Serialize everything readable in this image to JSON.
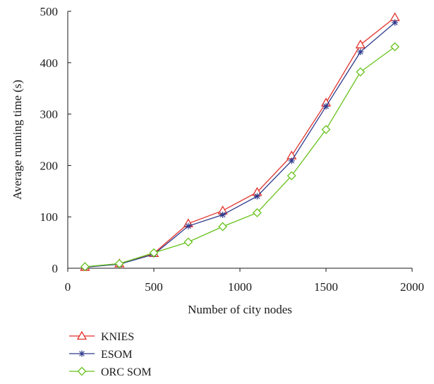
{
  "chart_data": {
    "type": "line",
    "title": "",
    "xlabel": "Number of city nodes",
    "ylabel": "Average running time (s)",
    "xlim": [
      0,
      2000
    ],
    "ylim": [
      0,
      500
    ],
    "xticks": [
      "0",
      "500",
      "1000",
      "1500",
      "2000"
    ],
    "yticks": [
      "0",
      "100",
      "200",
      "300",
      "400",
      "500"
    ],
    "grid": false,
    "legend_position": "bottom-left",
    "x": [
      100,
      300,
      500,
      700,
      900,
      1100,
      1300,
      1500,
      1700,
      1900
    ],
    "series": [
      {
        "name": "KNIES",
        "color": "#e2322b",
        "marker": "triangle",
        "values": [
          2,
          9,
          29,
          87,
          112,
          148,
          219,
          322,
          435,
          488
        ]
      },
      {
        "name": "ESOM",
        "color": "#2e3a8c",
        "marker": "asterisk",
        "values": [
          2,
          8,
          27,
          82,
          104,
          140,
          209,
          315,
          421,
          478
        ]
      },
      {
        "name": "ORC SOM",
        "color": "#66c21a",
        "marker": "diamond",
        "values": [
          3,
          9,
          30,
          51,
          81,
          108,
          180,
          270,
          382,
          431
        ]
      }
    ]
  }
}
